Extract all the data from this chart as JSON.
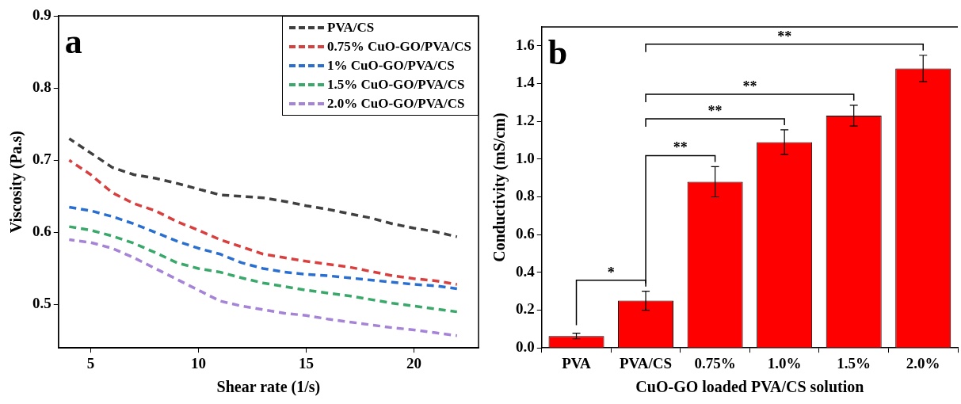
{
  "chart_data": [
    {
      "type": "line",
      "title": "a",
      "xlabel": "Shear rate (1/s)",
      "ylabel": "Viscosity (Pa.s)",
      "x": [
        4,
        5,
        6,
        7,
        8,
        9,
        10,
        11,
        12,
        13,
        14,
        15,
        16,
        17,
        18,
        19,
        20,
        21,
        22
      ],
      "series": [
        {
          "name": "PVA/CS",
          "color": "#404040",
          "values": [
            0.73,
            0.71,
            0.69,
            0.68,
            0.675,
            0.668,
            0.66,
            0.652,
            0.65,
            0.648,
            0.643,
            0.637,
            0.632,
            0.626,
            0.62,
            0.612,
            0.606,
            0.601,
            0.594
          ]
        },
        {
          "name": "0.75% CuO-GO/PVA/CS",
          "color": "#d84040",
          "values": [
            0.7,
            0.68,
            0.655,
            0.64,
            0.63,
            0.615,
            0.603,
            0.59,
            0.58,
            0.57,
            0.565,
            0.56,
            0.556,
            0.552,
            0.546,
            0.54,
            0.536,
            0.533,
            0.528
          ]
        },
        {
          "name": "1% CuO-GO/PVA/CS",
          "color": "#2a6fd0",
          "values": [
            0.635,
            0.63,
            0.622,
            0.612,
            0.6,
            0.588,
            0.578,
            0.57,
            0.558,
            0.55,
            0.545,
            0.542,
            0.54,
            0.537,
            0.534,
            0.531,
            0.528,
            0.526,
            0.522
          ]
        },
        {
          "name": "1.5% CuO-GO/PVA/CS",
          "color": "#3aa86a",
          "values": [
            0.608,
            0.603,
            0.595,
            0.585,
            0.572,
            0.558,
            0.55,
            0.545,
            0.537,
            0.53,
            0.525,
            0.52,
            0.516,
            0.512,
            0.507,
            0.502,
            0.498,
            0.494,
            0.49
          ]
        },
        {
          "name": "2.0% CuO-GO/PVA/CS",
          "color": "#a583d6",
          "values": [
            0.59,
            0.586,
            0.578,
            0.565,
            0.55,
            0.535,
            0.52,
            0.505,
            0.498,
            0.493,
            0.488,
            0.485,
            0.48,
            0.476,
            0.472,
            0.468,
            0.465,
            0.461,
            0.457
          ]
        }
      ],
      "xlim": [
        3.5,
        23
      ],
      "xticks": [
        5,
        10,
        15,
        20
      ],
      "ylim": [
        0.44,
        0.9
      ],
      "yticks": [
        0.5,
        0.6,
        0.7,
        0.8,
        0.9
      ],
      "legend": "top right",
      "line_style": "dashed",
      "marker": "none",
      "grid": false
    },
    {
      "type": "bar",
      "title": "b",
      "xlabel": "CuO-GO loaded PVA/CS solution",
      "ylabel": "Conductivity (mS/cm)",
      "categories": [
        "PVA",
        "PVA/CS",
        "0.75%",
        "1.0%",
        "1.5%",
        "2.0%"
      ],
      "values": [
        0.063,
        0.25,
        0.88,
        1.09,
        1.23,
        1.48
      ],
      "errors": [
        0.015,
        0.05,
        0.08,
        0.065,
        0.055,
        0.07
      ],
      "color": "#ff0000",
      "ylim": [
        0,
        1.7
      ],
      "yticks": [
        {
          "value": 0,
          "label": "0.0"
        },
        0.2,
        0.4,
        0.6,
        0.8,
        {
          "value": 1,
          "label": "1.0"
        },
        1.2,
        1.4,
        1.6
      ],
      "annotations": [
        "*",
        "**",
        "**",
        "**",
        "**"
      ],
      "grid": false,
      "legend": false
    }
  ]
}
